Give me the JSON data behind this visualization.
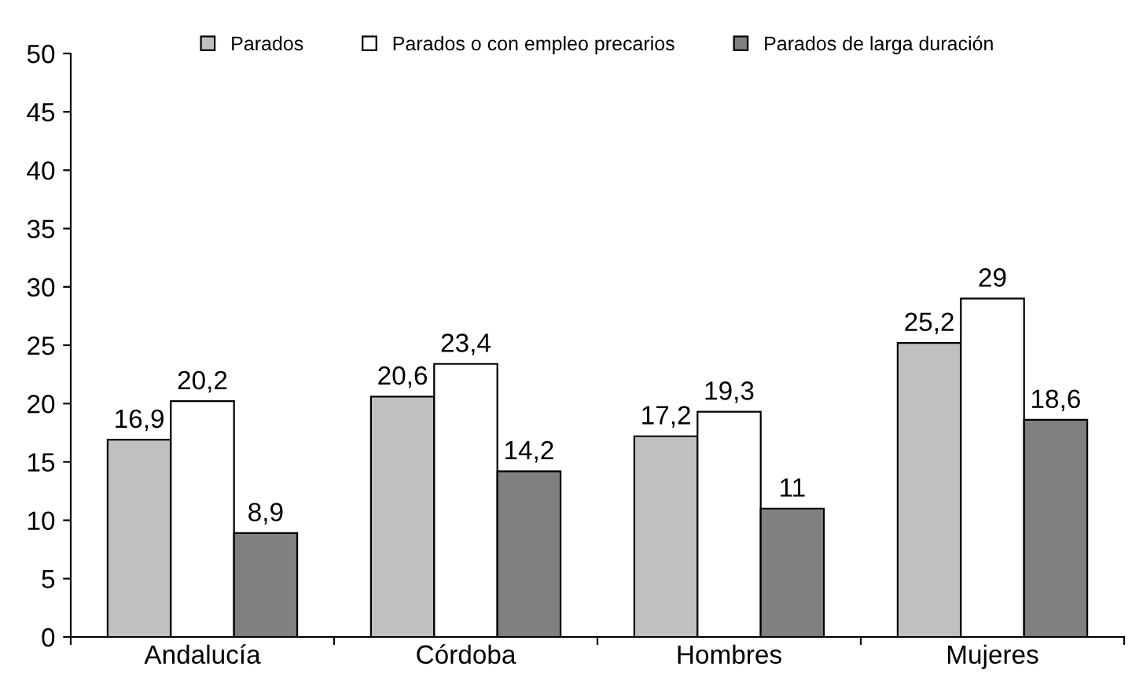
{
  "chart_data": {
    "type": "bar",
    "categories": [
      "Andalucía",
      "Córdoba",
      "Hombres",
      "Mujeres"
    ],
    "series": [
      {
        "name": "Parados",
        "color": "#c0c0c0",
        "values": [
          16.9,
          20.6,
          17.2,
          25.2
        ],
        "value_labels": [
          "16,9",
          "20,6",
          "17,2",
          "25,2"
        ]
      },
      {
        "name": "Parados o con empleo precarios",
        "color": "#ffffff",
        "values": [
          20.2,
          23.4,
          19.3,
          29
        ],
        "value_labels": [
          "20,2",
          "23,4",
          "19,3",
          "29"
        ]
      },
      {
        "name": "Parados de larga duración",
        "color": "#808080",
        "values": [
          8.9,
          14.2,
          11,
          18.6
        ],
        "value_labels": [
          "8,9",
          "14,2",
          "11",
          "18,6"
        ]
      }
    ],
    "ylim": [
      0,
      50
    ],
    "yticks": [
      0,
      5,
      10,
      15,
      20,
      25,
      30,
      35,
      40,
      45,
      50
    ],
    "grid": false,
    "legend": "top"
  }
}
